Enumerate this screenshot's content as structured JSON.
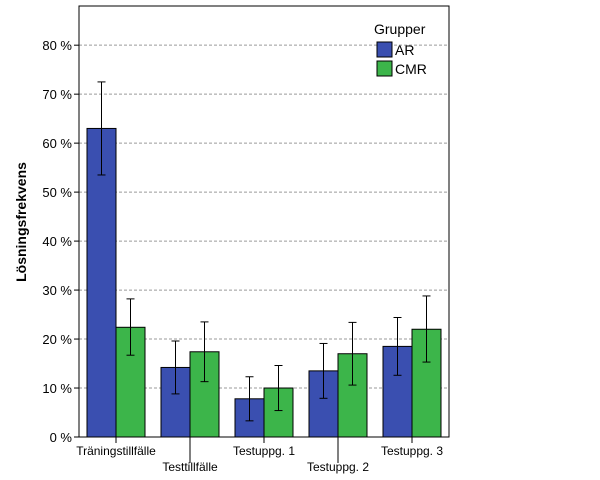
{
  "chart_data": {
    "type": "bar",
    "ylabel": "Lösningsfrekvens",
    "xlabel": "",
    "categories": [
      "Träningstillfälle",
      "Testtillfälle",
      "Testuppg. 1",
      "Testuppg. 2",
      "Testuppg. 3"
    ],
    "ylim": [
      0,
      88
    ],
    "yticks": [
      0,
      10,
      20,
      30,
      40,
      50,
      60,
      70,
      80
    ],
    "ytick_labels": [
      "0 %",
      "10 %",
      "20 %",
      "30 %",
      "40 %",
      "50 %",
      "60 %",
      "70 %",
      "80 %"
    ],
    "grid": "horizontal-dashed",
    "legend": {
      "title": "Grupper",
      "placement": "top-right"
    },
    "series": [
      {
        "name": "AR",
        "color": "#3a4fb0",
        "values": [
          63.0,
          14.2,
          7.8,
          13.5,
          18.5
        ],
        "error_low": [
          53.5,
          8.8,
          3.3,
          7.9,
          12.6
        ],
        "error_high": [
          72.5,
          19.6,
          12.3,
          19.1,
          24.4
        ]
      },
      {
        "name": "CMR",
        "color": "#3cb54a",
        "values": [
          22.4,
          17.4,
          10.0,
          17.0,
          22.0
        ],
        "error_low": [
          16.7,
          11.3,
          5.4,
          10.6,
          15.3
        ],
        "error_high": [
          28.2,
          23.5,
          14.6,
          23.4,
          28.8
        ]
      }
    ]
  }
}
